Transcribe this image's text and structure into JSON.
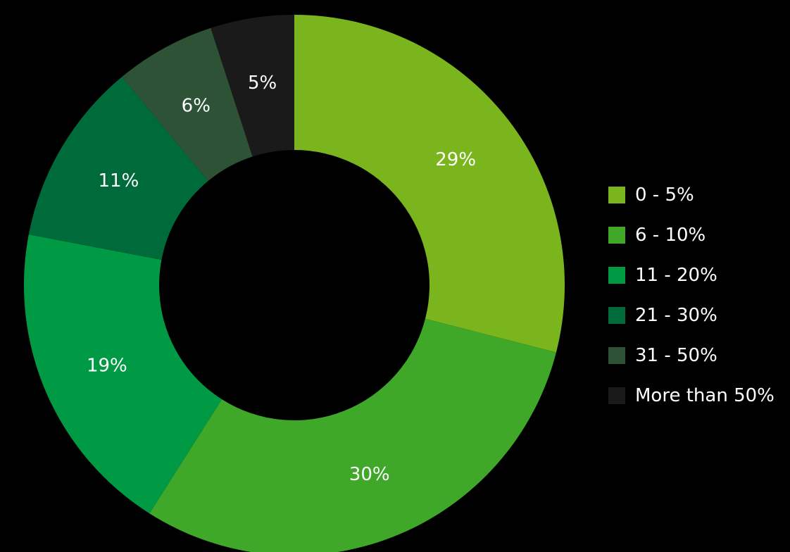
{
  "chart_data": {
    "type": "pie",
    "variant": "donut",
    "categories": [
      "0 - 5%",
      "6 - 10%",
      "11 - 20%",
      "21 - 30%",
      "31 - 50%",
      "More than 50%"
    ],
    "values": [
      29,
      30,
      19,
      11,
      6,
      5
    ],
    "labels": [
      "29%",
      "30%",
      "19%",
      "11%",
      "6%",
      "5%"
    ],
    "colors": [
      "#7ab51d",
      "#3fa829",
      "#009a44",
      "#006b3a",
      "#2d5236",
      "#1a1a1a"
    ],
    "legend": {
      "position": "right",
      "items": [
        {
          "label": "0 - 5%",
          "color": "#7ab51d"
        },
        {
          "label": "6 - 10%",
          "color": "#3fa829"
        },
        {
          "label": "11 - 20%",
          "color": "#009a44"
        },
        {
          "label": "21 - 30%",
          "color": "#006b3a"
        },
        {
          "label": "31 - 50%",
          "color": "#2d5236"
        },
        {
          "label": "More than 50%",
          "color": "#1a1a1a"
        }
      ]
    },
    "background": "#000000",
    "direction": "clockwise from top"
  }
}
